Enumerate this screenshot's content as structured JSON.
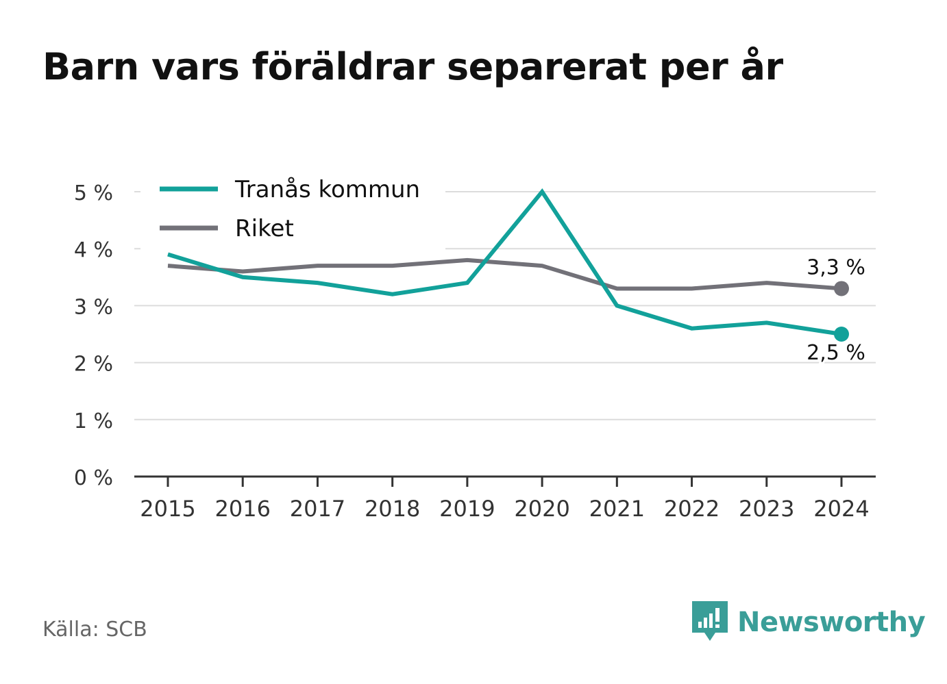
{
  "title": "Barn vars föräldrar separerat per år",
  "source": "Källa: SCB",
  "brand": {
    "name": "Newsworthy",
    "icon": "newsworthy-logo-icon",
    "color": "#3a9e98"
  },
  "chart_data": {
    "type": "line",
    "title": "Barn vars föräldrar separerat per år",
    "xlabel": "",
    "ylabel": "",
    "x": [
      2015,
      2016,
      2017,
      2018,
      2019,
      2020,
      2021,
      2022,
      2023,
      2024
    ],
    "x_tick_labels": [
      "2015",
      "2016",
      "2017",
      "2018",
      "2019",
      "2020",
      "2021",
      "2022",
      "2023",
      "2024"
    ],
    "y_ticks": [
      0,
      1,
      2,
      3,
      4,
      5
    ],
    "y_tick_labels": [
      "0 %",
      "1 %",
      "2 %",
      "3 %",
      "4 %",
      "5 %"
    ],
    "ylim": [
      0,
      5
    ],
    "grid": true,
    "legend_position": "top-left",
    "series": [
      {
        "name": "Tranås kommun",
        "color": "#12a19a",
        "values": [
          3.9,
          3.5,
          3.4,
          3.2,
          3.4,
          5.0,
          3.0,
          2.6,
          2.7,
          2.5
        ],
        "end_label": "2,5 %"
      },
      {
        "name": "Riket",
        "color": "#727178",
        "values": [
          3.7,
          3.6,
          3.7,
          3.7,
          3.8,
          3.7,
          3.3,
          3.3,
          3.4,
          3.3
        ],
        "end_label": "3,3 %"
      }
    ]
  }
}
